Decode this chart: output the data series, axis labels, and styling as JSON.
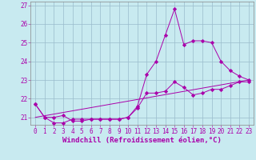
{
  "xlabel": "Windchill (Refroidissement éolien,°C)",
  "bg_color": "#c8eaf0",
  "line_color": "#aa00aa",
  "grid_color": "#99bbcc",
  "xlim": [
    -0.5,
    23.5
  ],
  "ylim": [
    20.6,
    27.2
  ],
  "xticks": [
    0,
    1,
    2,
    3,
    4,
    5,
    6,
    7,
    8,
    9,
    10,
    11,
    12,
    13,
    14,
    15,
    16,
    17,
    18,
    19,
    20,
    21,
    22,
    23
  ],
  "yticks": [
    21,
    22,
    23,
    24,
    25,
    26,
    27
  ],
  "series1_x": [
    0,
    1,
    2,
    3,
    4,
    5,
    6,
    7,
    8,
    9,
    10,
    11,
    12,
    13,
    14,
    15,
    16,
    17,
    18,
    19,
    20,
    21,
    22,
    23
  ],
  "series1_y": [
    21.7,
    21.0,
    21.0,
    21.1,
    20.8,
    20.8,
    20.9,
    20.9,
    20.9,
    20.9,
    21.0,
    21.6,
    23.3,
    24.0,
    25.4,
    26.8,
    24.9,
    25.1,
    25.1,
    25.0,
    24.0,
    23.5,
    23.2,
    23.0
  ],
  "series2_x": [
    0,
    1,
    2,
    3,
    4,
    5,
    6,
    7,
    8,
    9,
    10,
    11,
    12,
    13,
    14,
    15,
    16,
    17,
    18,
    19,
    20,
    21,
    22,
    23
  ],
  "series2_y": [
    21.7,
    21.0,
    20.7,
    20.7,
    20.9,
    20.9,
    20.9,
    20.9,
    20.9,
    20.9,
    21.0,
    21.5,
    22.3,
    22.3,
    22.4,
    22.9,
    22.6,
    22.2,
    22.3,
    22.5,
    22.5,
    22.7,
    22.9,
    22.9
  ],
  "series3_x": [
    0,
    23
  ],
  "series3_y": [
    21.0,
    23.0
  ],
  "tick_fontsize": 5.5,
  "xlabel_fontsize": 6.5
}
